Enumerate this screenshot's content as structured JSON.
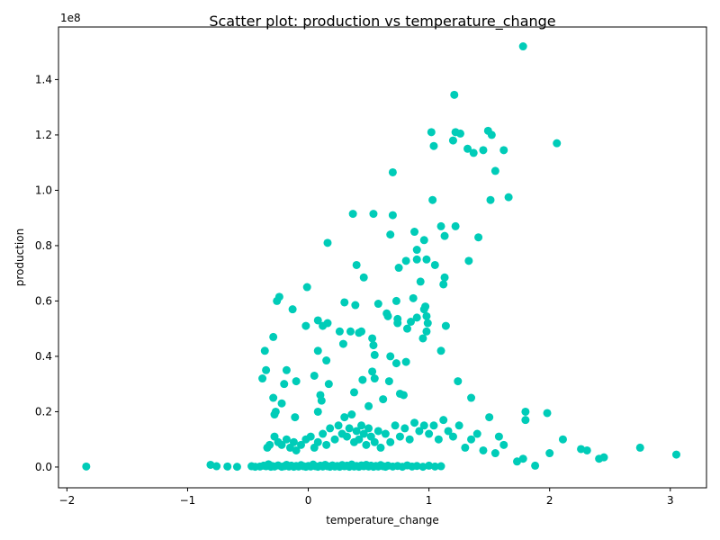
{
  "chart_data": {
    "type": "scatter",
    "title": "Scatter plot: production vs temperature_change",
    "xlabel": "temperature_change",
    "ylabel": "production",
    "y_offset_label": "1e8",
    "xlim": [
      -2.07,
      3.3
    ],
    "ylim": [
      -0.075,
      1.59
    ],
    "xticks": [
      -2,
      -1,
      0,
      1,
      2,
      3
    ],
    "xtick_labels": [
      "−2",
      "−1",
      "0",
      "1",
      "2",
      "3"
    ],
    "yticks": [
      0.0,
      0.2,
      0.4,
      0.6,
      0.8,
      1.0,
      1.2,
      1.4
    ],
    "ytick_labels": [
      "0.0",
      "0.2",
      "0.4",
      "0.6",
      "0.8",
      "1.0",
      "1.2",
      "1.4"
    ],
    "y_units_note": "values in units of 1e8",
    "grid": false,
    "marker_color": "#00CCB8",
    "points": [
      [
        -1.84,
        0.002
      ],
      [
        -0.81,
        0.008
      ],
      [
        -0.76,
        0.003
      ],
      [
        -0.67,
        0.002
      ],
      [
        -0.59,
        0.001
      ],
      [
        -0.47,
        0.003
      ],
      [
        -0.44,
        0.001
      ],
      [
        -0.4,
        0.002
      ],
      [
        -0.37,
        0.005
      ],
      [
        -0.35,
        0.003
      ],
      [
        -0.33,
        0.01
      ],
      [
        -0.31,
        0.001
      ],
      [
        -0.3,
        0.004
      ],
      [
        -0.28,
        0.002
      ],
      [
        -0.25,
        0.006
      ],
      [
        -0.22,
        0.001
      ],
      [
        -0.2,
        0.003
      ],
      [
        -0.18,
        0.008
      ],
      [
        -0.16,
        0.002
      ],
      [
        -0.14,
        0.005
      ],
      [
        -0.12,
        0.001
      ],
      [
        -0.1,
        0.004
      ],
      [
        -0.08,
        0.002
      ],
      [
        -0.06,
        0.007
      ],
      [
        -0.04,
        0.003
      ],
      [
        -0.02,
        0.001
      ],
      [
        0.0,
        0.004
      ],
      [
        0.02,
        0.002
      ],
      [
        0.04,
        0.009
      ],
      [
        0.06,
        0.003
      ],
      [
        0.08,
        0.001
      ],
      [
        0.1,
        0.005
      ],
      [
        0.12,
        0.002
      ],
      [
        0.14,
        0.008
      ],
      [
        0.16,
        0.003
      ],
      [
        0.18,
        0.001
      ],
      [
        0.2,
        0.006
      ],
      [
        0.22,
        0.002
      ],
      [
        0.24,
        0.004
      ],
      [
        0.26,
        0.001
      ],
      [
        0.28,
        0.007
      ],
      [
        0.3,
        0.003
      ],
      [
        0.32,
        0.005
      ],
      [
        0.34,
        0.001
      ],
      [
        0.36,
        0.009
      ],
      [
        0.38,
        0.002
      ],
      [
        0.4,
        0.004
      ],
      [
        0.42,
        0.001
      ],
      [
        0.44,
        0.006
      ],
      [
        0.46,
        0.003
      ],
      [
        0.48,
        0.008
      ],
      [
        0.5,
        0.002
      ],
      [
        0.52,
        0.005
      ],
      [
        0.54,
        0.001
      ],
      [
        0.56,
        0.004
      ],
      [
        0.58,
        0.002
      ],
      [
        0.6,
        0.007
      ],
      [
        0.62,
        0.003
      ],
      [
        0.64,
        0.001
      ],
      [
        0.66,
        0.005
      ],
      [
        0.7,
        0.002
      ],
      [
        0.74,
        0.004
      ],
      [
        0.78,
        0.001
      ],
      [
        0.82,
        0.006
      ],
      [
        0.86,
        0.002
      ],
      [
        0.9,
        0.004
      ],
      [
        0.95,
        0.001
      ],
      [
        1.0,
        0.005
      ],
      [
        1.05,
        0.002
      ],
      [
        1.1,
        0.003
      ],
      [
        -0.34,
        0.07
      ],
      [
        -0.32,
        0.08
      ],
      [
        -0.28,
        0.11
      ],
      [
        -0.25,
        0.09
      ],
      [
        -0.22,
        0.08
      ],
      [
        -0.18,
        0.1
      ],
      [
        -0.15,
        0.07
      ],
      [
        -0.12,
        0.09
      ],
      [
        -0.1,
        0.06
      ],
      [
        -0.06,
        0.08
      ],
      [
        -0.02,
        0.1
      ],
      [
        0.02,
        0.11
      ],
      [
        0.05,
        0.07
      ],
      [
        0.08,
        0.09
      ],
      [
        0.12,
        0.12
      ],
      [
        0.15,
        0.08
      ],
      [
        0.18,
        0.14
      ],
      [
        0.22,
        0.1
      ],
      [
        0.25,
        0.15
      ],
      [
        0.28,
        0.12
      ],
      [
        0.3,
        0.18
      ],
      [
        0.32,
        0.11
      ],
      [
        0.34,
        0.14
      ],
      [
        0.36,
        0.19
      ],
      [
        0.38,
        0.09
      ],
      [
        0.4,
        0.13
      ],
      [
        0.42,
        0.1
      ],
      [
        0.44,
        0.15
      ],
      [
        0.46,
        0.12
      ],
      [
        0.48,
        0.08
      ],
      [
        0.5,
        0.14
      ],
      [
        0.52,
        0.11
      ],
      [
        0.55,
        0.09
      ],
      [
        0.58,
        0.13
      ],
      [
        0.6,
        0.07
      ],
      [
        0.64,
        0.12
      ],
      [
        0.68,
        0.09
      ],
      [
        0.72,
        0.15
      ],
      [
        0.76,
        0.11
      ],
      [
        0.8,
        0.14
      ],
      [
        0.84,
        0.1
      ],
      [
        0.88,
        0.16
      ],
      [
        0.92,
        0.13
      ],
      [
        0.96,
        0.15
      ],
      [
        1.0,
        0.12
      ],
      [
        1.04,
        0.15
      ],
      [
        1.08,
        0.1
      ],
      [
        1.12,
        0.17
      ],
      [
        1.16,
        0.13
      ],
      [
        1.2,
        0.11
      ],
      [
        1.25,
        0.15
      ],
      [
        1.3,
        0.07
      ],
      [
        1.35,
        0.1
      ],
      [
        1.4,
        0.12
      ],
      [
        1.45,
        0.06
      ],
      [
        1.5,
        0.18
      ],
      [
        1.55,
        0.05
      ],
      [
        1.58,
        0.11
      ],
      [
        1.62,
        0.08
      ],
      [
        1.73,
        0.02
      ],
      [
        1.78,
        0.03
      ],
      [
        1.8,
        0.2
      ],
      [
        1.8,
        0.17
      ],
      [
        1.88,
        0.005
      ],
      [
        1.98,
        0.195
      ],
      [
        2.0,
        0.05
      ],
      [
        2.11,
        0.1
      ],
      [
        2.26,
        0.065
      ],
      [
        2.31,
        0.06
      ],
      [
        2.41,
        0.03
      ],
      [
        2.45,
        0.035
      ],
      [
        2.75,
        0.07
      ],
      [
        3.05,
        0.045
      ],
      [
        -0.38,
        0.32
      ],
      [
        -0.36,
        0.42
      ],
      [
        -0.35,
        0.35
      ],
      [
        -0.29,
        0.25
      ],
      [
        -0.29,
        0.47
      ],
      [
        -0.28,
        0.19
      ],
      [
        -0.27,
        0.2
      ],
      [
        -0.26,
        0.6
      ],
      [
        -0.24,
        0.615
      ],
      [
        -0.22,
        0.23
      ],
      [
        -0.2,
        0.3
      ],
      [
        -0.18,
        0.35
      ],
      [
        -0.13,
        0.57
      ],
      [
        -0.1,
        0.31
      ],
      [
        -0.11,
        0.18
      ],
      [
        -0.02,
        0.51
      ],
      [
        -0.01,
        0.65
      ],
      [
        0.05,
        0.33
      ],
      [
        0.08,
        0.42
      ],
      [
        0.08,
        0.53
      ],
      [
        0.08,
        0.2
      ],
      [
        0.1,
        0.26
      ],
      [
        0.11,
        0.24
      ],
      [
        0.12,
        0.51
      ],
      [
        0.15,
        0.385
      ],
      [
        0.16,
        0.52
      ],
      [
        0.17,
        0.3
      ],
      [
        0.16,
        0.81
      ],
      [
        0.26,
        0.49
      ],
      [
        0.29,
        0.445
      ],
      [
        0.3,
        0.595
      ],
      [
        0.35,
        0.49
      ],
      [
        0.37,
        0.915
      ],
      [
        0.38,
        0.27
      ],
      [
        0.39,
        0.585
      ],
      [
        0.4,
        0.73
      ],
      [
        0.42,
        0.485
      ],
      [
        0.44,
        0.49
      ],
      [
        0.45,
        0.315
      ],
      [
        0.46,
        0.685
      ],
      [
        0.5,
        0.22
      ],
      [
        0.53,
        0.465
      ],
      [
        0.53,
        0.345
      ],
      [
        0.54,
        0.44
      ],
      [
        0.54,
        0.915
      ],
      [
        0.55,
        0.32
      ],
      [
        0.55,
        0.405
      ],
      [
        0.58,
        0.59
      ],
      [
        0.62,
        0.245
      ],
      [
        0.65,
        0.555
      ],
      [
        0.66,
        0.545
      ],
      [
        0.67,
        0.31
      ],
      [
        0.68,
        0.4
      ],
      [
        0.68,
        0.84
      ],
      [
        0.7,
        1.065
      ],
      [
        0.7,
        0.91
      ],
      [
        0.73,
        0.6
      ],
      [
        0.73,
        0.375
      ],
      [
        0.74,
        0.52
      ],
      [
        0.74,
        0.535
      ],
      [
        0.75,
        0.72
      ],
      [
        0.76,
        0.265
      ],
      [
        0.79,
        0.26
      ],
      [
        0.81,
        0.745
      ],
      [
        0.81,
        0.38
      ],
      [
        0.82,
        0.5
      ],
      [
        0.85,
        0.525
      ],
      [
        0.87,
        0.61
      ],
      [
        0.88,
        0.85
      ],
      [
        0.9,
        0.54
      ],
      [
        0.9,
        0.785
      ],
      [
        0.9,
        0.75
      ],
      [
        0.93,
        0.67
      ],
      [
        0.95,
        0.465
      ],
      [
        0.96,
        0.82
      ],
      [
        0.96,
        0.57
      ],
      [
        0.97,
        0.58
      ],
      [
        0.98,
        0.75
      ],
      [
        0.98,
        0.545
      ],
      [
        0.98,
        0.49
      ],
      [
        0.99,
        0.52
      ],
      [
        1.02,
        1.21
      ],
      [
        1.03,
        0.965
      ],
      [
        1.04,
        1.16
      ],
      [
        1.05,
        0.73
      ],
      [
        1.1,
        0.87
      ],
      [
        1.1,
        0.42
      ],
      [
        1.12,
        0.66
      ],
      [
        1.13,
        0.835
      ],
      [
        1.13,
        0.685
      ],
      [
        1.14,
        0.51
      ],
      [
        1.2,
        1.18
      ],
      [
        1.21,
        1.345
      ],
      [
        1.22,
        1.21
      ],
      [
        1.22,
        0.87
      ],
      [
        1.24,
        0.31
      ],
      [
        1.26,
        1.205
      ],
      [
        1.32,
        1.15
      ],
      [
        1.33,
        0.745
      ],
      [
        1.35,
        0.25
      ],
      [
        1.37,
        1.135
      ],
      [
        1.41,
        0.83
      ],
      [
        1.45,
        1.145
      ],
      [
        1.49,
        1.215
      ],
      [
        1.51,
        0.965
      ],
      [
        1.52,
        1.2
      ],
      [
        1.55,
        1.07
      ],
      [
        1.62,
        1.145
      ],
      [
        1.66,
        0.975
      ],
      [
        1.78,
        1.52
      ],
      [
        2.06,
        1.17
      ]
    ]
  }
}
